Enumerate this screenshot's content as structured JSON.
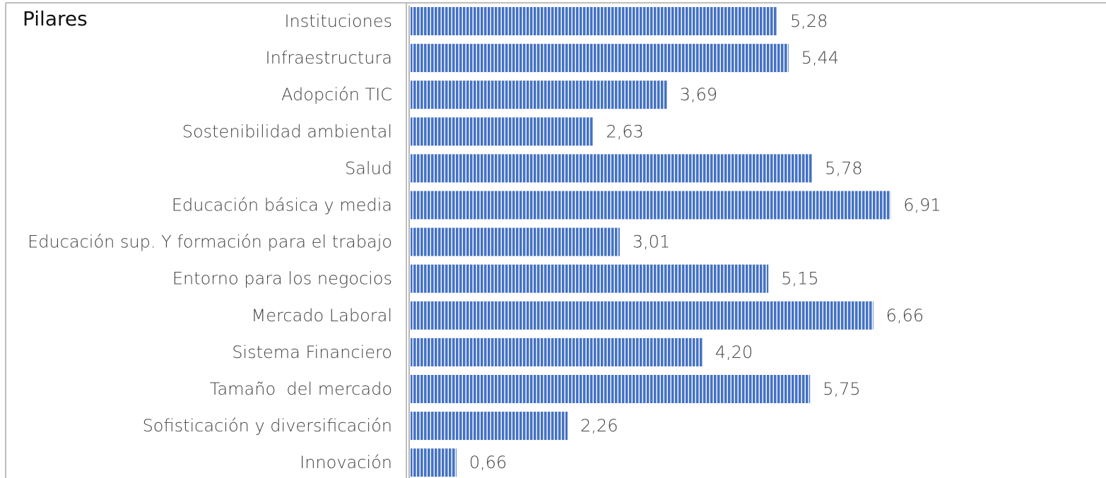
{
  "chart_data": {
    "type": "bar",
    "orientation": "horizontal",
    "title": "Pilares",
    "categories": [
      "Instituciones",
      "Infraestructura",
      "Adopción TIC",
      "Sostenibilidad ambiental",
      "Salud",
      "Educación básica y media",
      "Educación sup. Y formación para el trabajo",
      "Entorno para los negocios",
      "Mercado Laboral",
      "Sistema Financiero",
      "Tamaño  del mercado",
      "Sofisticación y diversificación",
      "Innovación"
    ],
    "values": [
      5.28,
      5.44,
      3.69,
      2.63,
      5.78,
      6.91,
      3.01,
      5.15,
      6.66,
      4.2,
      5.75,
      2.26,
      0.66
    ],
    "value_labels": [
      "5,28",
      "5,44",
      "3,69",
      "2,63",
      "5,78",
      "6,91",
      "3,01",
      "5,15",
      "6,66",
      "4,20",
      "5,75",
      "2,26",
      "0,66"
    ],
    "color": "#4472c4"
  }
}
